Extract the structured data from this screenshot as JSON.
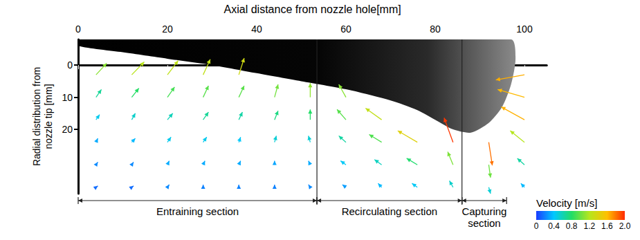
{
  "chart_data": {
    "type": "vector",
    "x_label": "Axial distance from nozzle hole[mm]",
    "y_label": "Radial distribution from nozzle tip [mm]",
    "xlim": [
      0,
      105
    ],
    "xticks": [
      0,
      20,
      40,
      60,
      80,
      100
    ],
    "ylim": [
      -8,
      40
    ],
    "yticks": [
      0,
      10,
      20
    ],
    "grid": false,
    "vectors": [
      [
        4,
        3,
        0.6,
        -0.9
      ],
      [
        12,
        3,
        0.7,
        -1.0
      ],
      [
        20,
        3,
        0.6,
        -1.1
      ],
      [
        28,
        3,
        0.4,
        -1.2
      ],
      [
        36,
        3,
        0.3,
        -1.3
      ],
      [
        100,
        3,
        -1.6,
        0.4
      ],
      [
        4,
        10,
        0.3,
        -0.6
      ],
      [
        12,
        10,
        0.4,
        -0.7
      ],
      [
        20,
        10,
        0.4,
        -0.8
      ],
      [
        28,
        10,
        0.3,
        -0.9
      ],
      [
        36,
        10,
        0.3,
        -0.9
      ],
      [
        44,
        10,
        0.2,
        -1.0
      ],
      [
        52,
        10,
        0.0,
        -1.1
      ],
      [
        60,
        10,
        -0.4,
        -1.0
      ],
      [
        100,
        10,
        -1.5,
        -0.6
      ],
      [
        4,
        17,
        0.2,
        -0.4
      ],
      [
        12,
        17,
        0.2,
        -0.5
      ],
      [
        20,
        17,
        0.3,
        -0.5
      ],
      [
        28,
        17,
        0.3,
        -0.6
      ],
      [
        36,
        17,
        0.2,
        -0.6
      ],
      [
        44,
        17,
        0.2,
        -0.7
      ],
      [
        52,
        17,
        0.0,
        -0.8
      ],
      [
        60,
        17,
        -0.5,
        -0.8
      ],
      [
        68,
        17,
        -0.9,
        -0.9
      ],
      [
        100,
        17,
        -1.3,
        -1.0
      ],
      [
        4,
        24,
        0.1,
        -0.3
      ],
      [
        12,
        24,
        0.2,
        -0.3
      ],
      [
        20,
        24,
        0.2,
        -0.4
      ],
      [
        28,
        24,
        0.2,
        -0.4
      ],
      [
        36,
        24,
        0.1,
        -0.4
      ],
      [
        44,
        24,
        0.1,
        -0.5
      ],
      [
        52,
        24,
        -0.1,
        -0.5
      ],
      [
        60,
        24,
        -0.4,
        -0.5
      ],
      [
        68,
        24,
        -0.7,
        -0.6
      ],
      [
        76,
        24,
        -1.1,
        -0.9
      ],
      [
        84,
        24,
        -0.5,
        -1.9
      ],
      [
        92,
        24,
        0.2,
        1.8
      ],
      [
        100,
        24,
        -0.8,
        -0.9
      ],
      [
        4,
        31,
        0.1,
        -0.2
      ],
      [
        12,
        31,
        0.1,
        -0.2
      ],
      [
        20,
        31,
        0.1,
        -0.3
      ],
      [
        28,
        31,
        0.1,
        -0.3
      ],
      [
        36,
        31,
        0.1,
        -0.3
      ],
      [
        44,
        31,
        0.0,
        -0.3
      ],
      [
        52,
        31,
        -0.1,
        -0.3
      ],
      [
        60,
        31,
        -0.3,
        -0.3
      ],
      [
        68,
        31,
        -0.4,
        -0.4
      ],
      [
        76,
        31,
        -0.6,
        -0.5
      ],
      [
        84,
        31,
        -0.3,
        -1.0
      ],
      [
        92,
        31,
        0.1,
        1.0
      ],
      [
        100,
        31,
        -0.4,
        -0.5
      ],
      [
        4,
        38,
        0.1,
        -0.1
      ],
      [
        12,
        38,
        0.1,
        -0.1
      ],
      [
        20,
        38,
        0.1,
        -0.2
      ],
      [
        28,
        38,
        0.0,
        -0.2
      ],
      [
        36,
        38,
        0.0,
        -0.2
      ],
      [
        44,
        38,
        0.0,
        -0.2
      ],
      [
        52,
        38,
        -0.1,
        -0.2
      ],
      [
        60,
        38,
        -0.2,
        -0.2
      ],
      [
        68,
        38,
        -0.2,
        -0.3
      ],
      [
        76,
        38,
        -0.3,
        -0.3
      ],
      [
        84,
        38,
        -0.2,
        -0.5
      ],
      [
        92,
        38,
        0.1,
        0.5
      ],
      [
        100,
        38,
        -0.2,
        -0.3
      ]
    ],
    "spray_outline": {
      "x": [
        0,
        10,
        20,
        30,
        40,
        50,
        60,
        70,
        76,
        80,
        84,
        88,
        92,
        95,
        97,
        98,
        97,
        0
      ],
      "y": [
        -6,
        -4,
        -2,
        0,
        2.5,
        5,
        7.5,
        11,
        14,
        17,
        20,
        21,
        18,
        13,
        6,
        -2,
        -8,
        -8
      ]
    },
    "sections": [
      {
        "label": "Entraining section",
        "from": 0,
        "to": 53.5
      },
      {
        "label": "Recirculating section",
        "from": 53.5,
        "to": 86
      },
      {
        "label": "Capturing section",
        "from": 86,
        "to": 96
      }
    ],
    "colorbar": {
      "label": "Velocity [m/s]",
      "range": [
        0,
        2
      ],
      "ticks": [
        0,
        0.4,
        0.8,
        1.2,
        1.6,
        {
          "value": 2,
          "label": "2.0"
        }
      ],
      "colors": [
        "#1a3cff",
        "#00c8ff",
        "#22dd66",
        "#b5e61d",
        "#ffc000",
        "#ff2a00"
      ]
    }
  }
}
